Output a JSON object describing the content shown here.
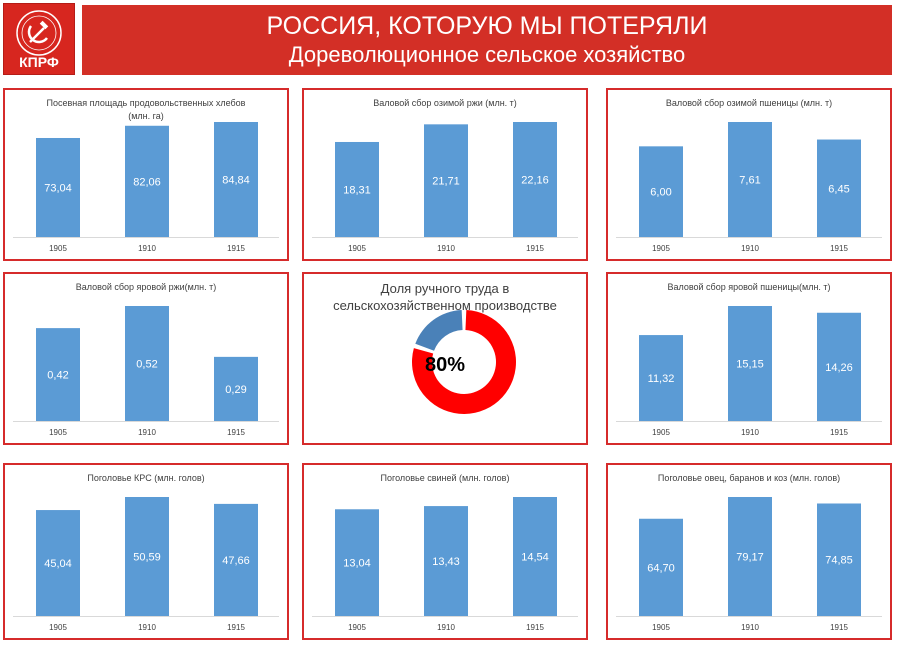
{
  "header": {
    "logo_text": "КПРФ",
    "title": "РОССИЯ, КОТОРУЮ МЫ ПОТЕРЯЛИ",
    "subtitle": "Дореволюционное сельское хозяйство"
  },
  "chart_data": [
    {
      "type": "bar",
      "title": "Посевная площадь продовольственных хлебов",
      "subtitle": "(млн. га)",
      "categories": [
        "1905",
        "1910",
        "1915"
      ],
      "values": [
        73.04,
        82.06,
        84.84
      ],
      "labels": [
        "73,04",
        "82,06",
        "84,84"
      ],
      "color": "#5b9bd5"
    },
    {
      "type": "bar",
      "title": "Валовой сбор озимой ржи (млн. т)",
      "categories": [
        "1905",
        "1910",
        "1915"
      ],
      "values": [
        18.31,
        21.71,
        22.16
      ],
      "labels": [
        "18,31",
        "21,71",
        "22,16"
      ],
      "color": "#5b9bd5"
    },
    {
      "type": "bar",
      "title": "Валовой сбор озимой пшеницы (млн. т)",
      "categories": [
        "1905",
        "1910",
        "1915"
      ],
      "values": [
        6.0,
        7.61,
        6.45
      ],
      "labels": [
        "6,00",
        "7,61",
        "6,45"
      ],
      "color": "#5b9bd5"
    },
    {
      "type": "bar",
      "title": "Валовой сбор яровой ржи(млн. т)",
      "categories": [
        "1905",
        "1910",
        "1915"
      ],
      "values": [
        0.42,
        0.52,
        0.29
      ],
      "labels": [
        "0,42",
        "0,52",
        "0,29"
      ],
      "color": "#5b9bd5"
    },
    {
      "type": "pie",
      "title": "Доля ручного труда в сельскохозяйственном производстве",
      "values": [
        80,
        20
      ],
      "label": "80%",
      "colors": [
        "#ff0000",
        "#4a81b8"
      ]
    },
    {
      "type": "bar",
      "title": "Валовой сбор яровой пшеницы(млн. т)",
      "categories": [
        "1905",
        "1910",
        "1915"
      ],
      "values": [
        11.32,
        15.15,
        14.26
      ],
      "labels": [
        "11,32",
        "15,15",
        "14,26"
      ],
      "color": "#5b9bd5"
    },
    {
      "type": "bar",
      "title": "Поголовье КРС (млн. голов)",
      "categories": [
        "1905",
        "1910",
        "1915"
      ],
      "values": [
        45.04,
        50.59,
        47.66
      ],
      "labels": [
        "45,04",
        "50,59",
        "47,66"
      ],
      "color": "#5b9bd5"
    },
    {
      "type": "bar",
      "title": "Поголовье свиней (млн. голов)",
      "categories": [
        "1905",
        "1910",
        "1915"
      ],
      "values": [
        13.04,
        13.43,
        14.54
      ],
      "labels": [
        "13,04",
        "13,43",
        "14,54"
      ],
      "color": "#5b9bd5"
    },
    {
      "type": "bar",
      "title": "Поголовье овец, баранов и коз (млн. голов)",
      "categories": [
        "1905",
        "1910",
        "1915"
      ],
      "values": [
        64.7,
        79.17,
        74.85
      ],
      "labels": [
        "64,70",
        "79,17",
        "74,85"
      ],
      "color": "#5b9bd5"
    }
  ]
}
